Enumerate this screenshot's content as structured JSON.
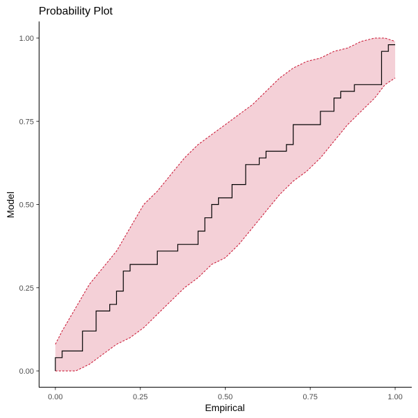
{
  "chart_data": {
    "type": "line",
    "title": "Probability Plot",
    "xlabel": "Empirical",
    "ylabel": "Model",
    "xlim": [
      0,
      1
    ],
    "ylim": [
      0,
      1
    ],
    "x_ticks": [
      "0.00",
      "0.25",
      "0.50",
      "0.75",
      "1.00"
    ],
    "y_ticks": [
      "0.00",
      "0.25",
      "0.50",
      "0.75",
      "1.00"
    ],
    "grid": false,
    "legend": "none",
    "colors": {
      "band_fill": "#f4d0d7",
      "band_border": "#c8102e",
      "line": "#000000",
      "axis": "#000000",
      "tick_text": "#4d4d4d"
    },
    "series": [
      {
        "type": "step",
        "x": [
          0.0,
          0.02,
          0.02,
          0.08,
          0.08,
          0.12,
          0.12,
          0.16,
          0.16,
          0.18,
          0.18,
          0.2,
          0.2,
          0.22,
          0.22,
          0.3,
          0.3,
          0.36,
          0.36,
          0.42,
          0.42,
          0.44,
          0.44,
          0.46,
          0.46,
          0.48,
          0.48,
          0.52,
          0.52,
          0.56,
          0.56,
          0.6,
          0.6,
          0.62,
          0.62,
          0.68,
          0.68,
          0.7,
          0.7,
          0.78,
          0.78,
          0.82,
          0.82,
          0.84,
          0.84,
          0.88,
          0.88,
          0.96,
          0.96,
          0.98,
          0.98,
          1.0
        ],
        "y": [
          0.04,
          0.04,
          0.06,
          0.06,
          0.12,
          0.12,
          0.18,
          0.18,
          0.2,
          0.2,
          0.24,
          0.24,
          0.3,
          0.3,
          0.32,
          0.32,
          0.36,
          0.36,
          0.38,
          0.38,
          0.42,
          0.42,
          0.46,
          0.46,
          0.5,
          0.5,
          0.52,
          0.52,
          0.56,
          0.56,
          0.62,
          0.62,
          0.64,
          0.64,
          0.66,
          0.66,
          0.68,
          0.68,
          0.74,
          0.74,
          0.78,
          0.78,
          0.82,
          0.82,
          0.84,
          0.84,
          0.86,
          0.86,
          0.96,
          0.96,
          0.98,
          0.98
        ]
      }
    ],
    "band": {
      "x": [
        0.0,
        0.02,
        0.06,
        0.1,
        0.14,
        0.18,
        0.22,
        0.26,
        0.3,
        0.34,
        0.38,
        0.42,
        0.46,
        0.5,
        0.54,
        0.58,
        0.62,
        0.66,
        0.7,
        0.74,
        0.78,
        0.82,
        0.86,
        0.9,
        0.94,
        0.97,
        1.0
      ],
      "upper": [
        0.08,
        0.12,
        0.19,
        0.26,
        0.31,
        0.36,
        0.43,
        0.5,
        0.54,
        0.59,
        0.64,
        0.68,
        0.71,
        0.74,
        0.77,
        0.8,
        0.84,
        0.88,
        0.91,
        0.93,
        0.94,
        0.96,
        0.97,
        0.99,
        1.0,
        1.0,
        0.99
      ],
      "lower": [
        0.0,
        0.0,
        0.0,
        0.02,
        0.05,
        0.08,
        0.1,
        0.13,
        0.17,
        0.21,
        0.25,
        0.28,
        0.32,
        0.34,
        0.38,
        0.43,
        0.48,
        0.53,
        0.57,
        0.6,
        0.64,
        0.69,
        0.74,
        0.78,
        0.82,
        0.86,
        0.88
      ]
    }
  }
}
